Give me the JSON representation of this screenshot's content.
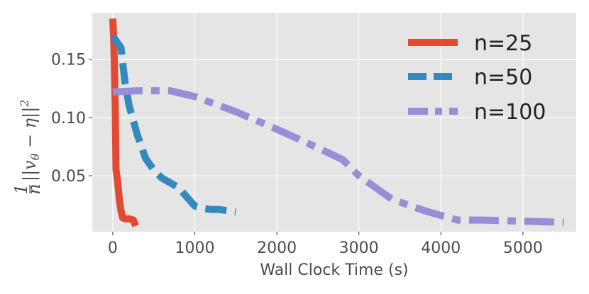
{
  "chart_data": {
    "type": "line",
    "title": "",
    "xlabel": "Wall Clock Time (s)",
    "ylabel": "1/n ||v_θ − η||²",
    "ylabel_parts": {
      "num": "1",
      "den": "n",
      "body": "||v",
      "sub": "θ",
      "mid": " − η||",
      "sup": "2"
    },
    "xlim": [
      -250,
      5650
    ],
    "ylim": [
      0.002,
      0.19
    ],
    "xticks": [
      0,
      1000,
      2000,
      3000,
      4000,
      5000
    ],
    "xtick_labels": [
      "0",
      "1000",
      "2000",
      "3000",
      "4000",
      "5000"
    ],
    "yticks": [
      0.05,
      0.1,
      0.15
    ],
    "ytick_labels": [
      "0.05",
      "0.10",
      "0.15"
    ],
    "grid": true,
    "legend_position": "top-right",
    "series": [
      {
        "name": "n=25",
        "color": "#E24A33",
        "style": "solid",
        "x": [
          0,
          10,
          20,
          30,
          40,
          60,
          80,
          100,
          120,
          150,
          200,
          250,
          280
        ],
        "y": [
          0.185,
          0.17,
          0.145,
          0.11,
          0.055,
          0.045,
          0.03,
          0.02,
          0.014,
          0.013,
          0.013,
          0.012,
          0.007
        ]
      },
      {
        "name": "n=50",
        "color": "#348ABD",
        "style": "dashed",
        "x": [
          0,
          100,
          150,
          200,
          300,
          400,
          500,
          600,
          700,
          800,
          900,
          950,
          1000,
          1100,
          1200,
          1300,
          1400,
          1500
        ],
        "y": [
          0.17,
          0.16,
          0.13,
          0.11,
          0.085,
          0.065,
          0.055,
          0.048,
          0.044,
          0.04,
          0.032,
          0.028,
          0.024,
          0.022,
          0.021,
          0.021,
          0.02,
          0.019
        ]
      },
      {
        "name": "n=100",
        "color": "#988ED5",
        "style": "dashdot",
        "x": [
          0,
          300,
          700,
          1000,
          1500,
          2000,
          2500,
          2800,
          3000,
          3400,
          3800,
          4200,
          4500,
          5000,
          5500
        ],
        "y": [
          0.122,
          0.123,
          0.123,
          0.118,
          0.105,
          0.09,
          0.074,
          0.064,
          0.05,
          0.03,
          0.02,
          0.012,
          0.012,
          0.011,
          0.01
        ]
      }
    ]
  }
}
